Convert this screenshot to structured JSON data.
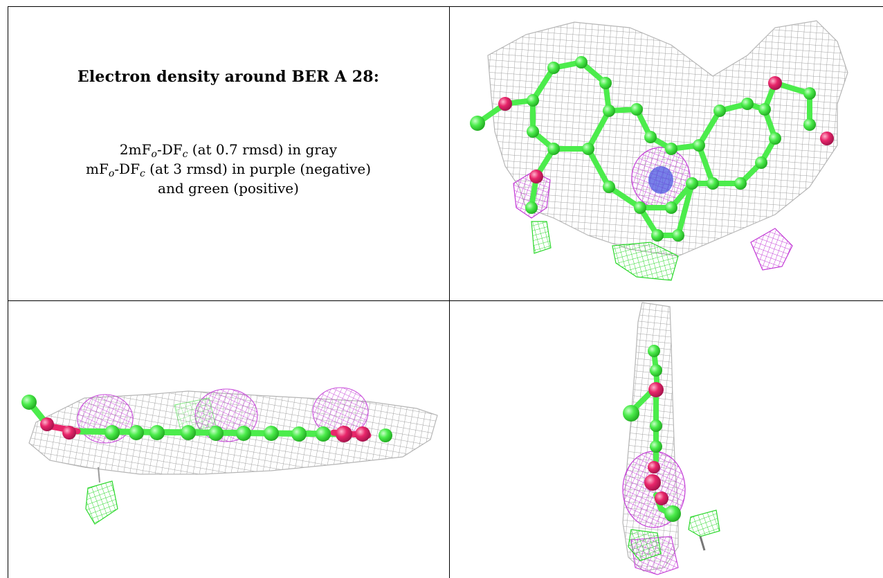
{
  "caption": {
    "title": "Electron density around BER A 28:",
    "line1": {
      "pre": "2mF",
      "sub1": "o",
      "mid": "-DF",
      "sub2": "c",
      "post": " (at 0.7 rmsd) in gray"
    },
    "line2": {
      "pre": "mF",
      "sub1": "o",
      "mid": "-DF",
      "sub2": "c",
      "post": " (at 3 rmsd) in purple (negative)"
    },
    "line3": "and green (positive)"
  },
  "colors": {
    "mesh_2fofc": "#9a9a9a",
    "negative_density": "#c33ad6",
    "positive_density": "#2bd82b",
    "carbon": "#4cec4c",
    "oxygen": "#e8266a",
    "nitrogen": "#4b55e0"
  }
}
